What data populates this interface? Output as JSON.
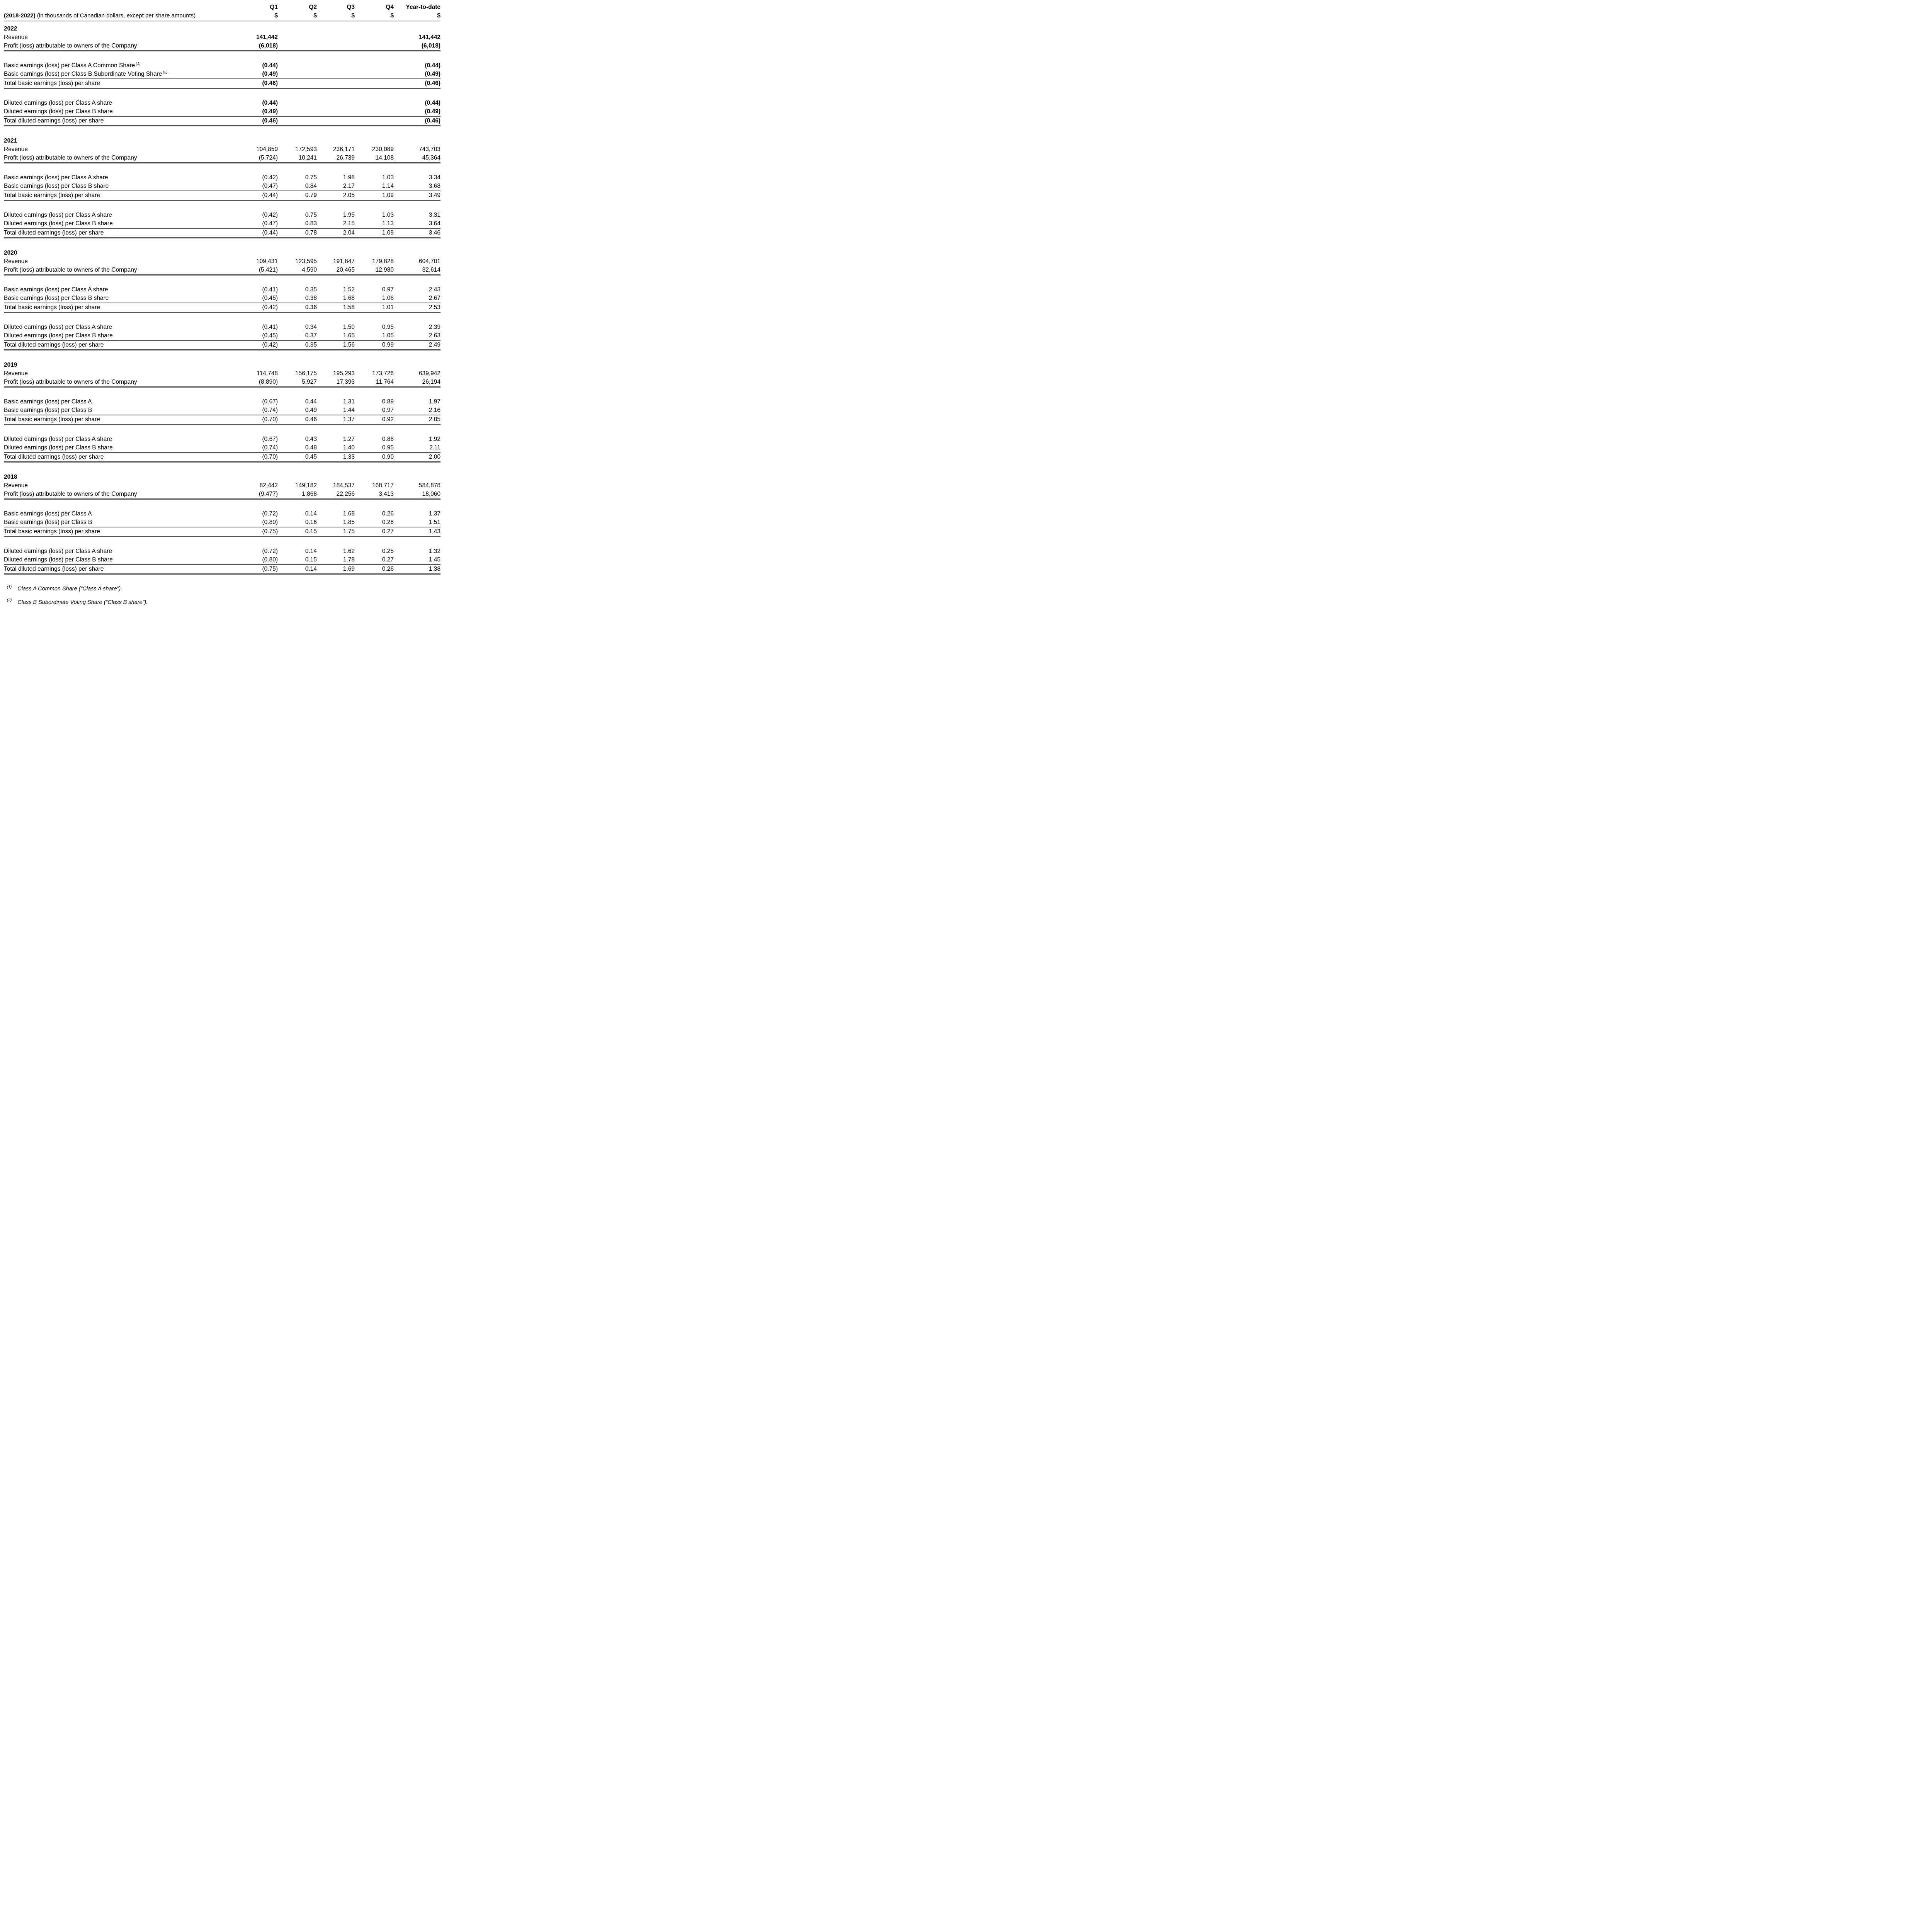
{
  "header": {
    "title_bold": "(2018-2022)",
    "title_note": "(in thousands of Canadian dollars, except per share amounts)",
    "columns": [
      "Q1",
      "Q2",
      "Q3",
      "Q4",
      "Year-to-date"
    ],
    "currency_symbol": "$"
  },
  "colors": {
    "rule_dark": "#54565A",
    "rule_light": "#E4E4E6",
    "text": "#000000"
  },
  "sections": [
    {
      "year": "2022",
      "emphasis": true,
      "rows": [
        {
          "label": "Revenue",
          "values": [
            "141,442",
            "",
            "",
            "",
            "141,442"
          ]
        },
        {
          "label": "Profit (loss) attributable to owners of the Company",
          "values": [
            "(6,018)",
            "",
            "",
            "",
            "(6,018)"
          ],
          "divider_after": "thick"
        },
        {
          "type": "spacer"
        },
        {
          "label": "Basic earnings (loss) per Class A Common Share",
          "sup": "(1)",
          "values": [
            "(0.44)",
            "",
            "",
            "",
            "(0.44)"
          ]
        },
        {
          "label": "Basic earnings (loss) per Class B Subordinate Voting Share",
          "sup": "(2)",
          "values": [
            "(0.49)",
            "",
            "",
            "",
            "(0.49)"
          ],
          "divider_after": "thin"
        },
        {
          "label": "Total basic earnings (loss) per share",
          "values": [
            "(0.46)",
            "",
            "",
            "",
            "(0.46)"
          ],
          "divider_after": "thick"
        },
        {
          "type": "spacer"
        },
        {
          "label": "Diluted earnings (loss) per Class A share",
          "values": [
            "(0.44)",
            "",
            "",
            "",
            "(0.44)"
          ]
        },
        {
          "label": "Diluted earnings (loss) per Class B share",
          "values": [
            "(0.49)",
            "",
            "",
            "",
            "(0.49)"
          ],
          "divider_after": "thin"
        },
        {
          "label": "Total diluted earnings (loss) per share",
          "values": [
            "(0.46)",
            "",
            "",
            "",
            "(0.46)"
          ],
          "divider_after": "thick"
        }
      ]
    },
    {
      "year": "2021",
      "emphasis": false,
      "rows": [
        {
          "label": "Revenue",
          "values": [
            "104,850",
            "172,593",
            "236,171",
            "230,089",
            "743,703"
          ]
        },
        {
          "label": "Profit (loss) attributable to owners of the Company",
          "values": [
            "(5,724)",
            "10,241",
            "26,739",
            "14,108",
            "45,364"
          ],
          "divider_after": "thick"
        },
        {
          "type": "spacer"
        },
        {
          "label": "Basic earnings (loss) per Class A share",
          "values": [
            "(0.42)",
            "0.75",
            "1.98",
            "1.03",
            "3.34"
          ]
        },
        {
          "label": "Basic earnings (loss) per Class B share",
          "values": [
            "(0.47)",
            "0.84",
            "2.17",
            "1.14",
            "3.68"
          ],
          "divider_after": "thin"
        },
        {
          "label": "Total basic earnings (loss) per share",
          "values": [
            "(0.44)",
            "0.79",
            "2.05",
            "1.09",
            "3.49"
          ],
          "divider_after": "thick"
        },
        {
          "type": "spacer"
        },
        {
          "label": "Diluted earnings (loss) per Class A share",
          "values": [
            "(0.42)",
            "0.75",
            "1.95",
            "1.03",
            "3.31"
          ]
        },
        {
          "label": "Diluted earnings (loss) per Class B share",
          "values": [
            "(0.47)",
            "0.83",
            "2.15",
            "1.13",
            "3.64"
          ],
          "divider_after": "thin"
        },
        {
          "label": "Total diluted earnings (loss) per share",
          "values": [
            "(0.44)",
            "0.78",
            "2.04",
            "1.09",
            "3.46"
          ],
          "divider_after": "thick"
        }
      ]
    },
    {
      "year": "2020",
      "emphasis": false,
      "rows": [
        {
          "label": "Revenue",
          "values": [
            "109,431",
            "123,595",
            "191,847",
            "179,828",
            "604,701"
          ]
        },
        {
          "label": "Profit (loss) attributable to owners of the Company",
          "values": [
            "(5,421)",
            "4,590",
            "20,465",
            "12,980",
            "32,614"
          ],
          "divider_after": "thick"
        },
        {
          "type": "spacer"
        },
        {
          "label": "Basic earnings (loss) per Class A share",
          "values": [
            "(0.41)",
            "0.35",
            "1.52",
            "0.97",
            "2.43"
          ]
        },
        {
          "label": "Basic earnings (loss) per Class B share",
          "values": [
            "(0.45)",
            "0.38",
            "1.68",
            "1.06",
            "2.67"
          ],
          "divider_after": "thin"
        },
        {
          "label": "Total basic earnings (loss) per share",
          "values": [
            "(0.42)",
            "0.36",
            "1.58",
            "1.01",
            "2.53"
          ],
          "divider_after": "thick"
        },
        {
          "type": "spacer"
        },
        {
          "label": "Diluted earnings (loss) per Class A share",
          "values": [
            "(0.41)",
            "0.34",
            "1.50",
            "0.95",
            "2.39"
          ]
        },
        {
          "label": "Diluted earnings (loss) per Class B share",
          "values": [
            "(0.45)",
            "0.37",
            "1.65",
            "1.05",
            "2.63"
          ],
          "divider_after": "thin"
        },
        {
          "label": "Total diluted earnings (loss) per share",
          "values": [
            "(0.42)",
            "0.35",
            "1.56",
            "0.99",
            "2.49"
          ],
          "divider_after": "thick"
        }
      ]
    },
    {
      "year": "2019",
      "emphasis": false,
      "rows": [
        {
          "label": "Revenue",
          "values": [
            "114,748",
            "156,175",
            "195,293",
            "173,726",
            "639,942"
          ]
        },
        {
          "label": "Profit (loss) attributable to owners of the Company",
          "values": [
            "(8,890)",
            "5,927",
            "17,393",
            "11,764",
            "26,194"
          ],
          "divider_after": "thick"
        },
        {
          "type": "spacer"
        },
        {
          "label": "Basic earnings (loss) per Class A",
          "values": [
            "(0.67)",
            "0.44",
            "1.31",
            "0.89",
            "1.97"
          ]
        },
        {
          "label": "Basic earnings (loss) per Class B",
          "values": [
            "(0.74)",
            "0.49",
            "1.44",
            "0.97",
            "2.16"
          ],
          "divider_after": "thin"
        },
        {
          "label": "Total basic earnings (loss) per share",
          "values": [
            "(0.70)",
            "0.46",
            "1.37",
            "0.92",
            "2.05"
          ],
          "divider_after": "thick"
        },
        {
          "type": "spacer"
        },
        {
          "label": "Diluted earnings (loss) per Class A share",
          "values": [
            "(0.67)",
            "0.43",
            "1.27",
            "0.86",
            "1.92"
          ]
        },
        {
          "label": "Diluted earnings (loss) per Class B share",
          "values": [
            "(0.74)",
            "0.48",
            "1.40",
            "0.95",
            "2.11"
          ],
          "divider_after": "thin"
        },
        {
          "label": "Total diluted earnings (loss) per share",
          "values": [
            "(0.70)",
            "0.45",
            "1.33",
            "0.90",
            "2.00"
          ],
          "divider_after": "thick"
        }
      ]
    },
    {
      "year": "2018",
      "emphasis": false,
      "rows": [
        {
          "label": "Revenue",
          "values": [
            "82,442",
            "149,182",
            "184,537",
            "168,717",
            "584,878"
          ]
        },
        {
          "label": "Profit (loss) attributable to owners of the Company",
          "values": [
            "(9,477)",
            "1,868",
            "22,256",
            "3,413",
            "18,060"
          ],
          "divider_after": "thick"
        },
        {
          "type": "spacer"
        },
        {
          "label": "Basic earnings (loss) per Class A",
          "values": [
            "(0.72)",
            "0.14",
            "1.68",
            "0.26",
            "1.37"
          ]
        },
        {
          "label": "Basic earnings (loss) per Class B",
          "values": [
            "(0.80)",
            "0.16",
            "1.85",
            "0.28",
            "1.51"
          ],
          "divider_after": "thin"
        },
        {
          "label": "Total basic earnings (loss) per share",
          "values": [
            "(0.75)",
            "0.15",
            "1.75",
            "0.27",
            "1.43"
          ],
          "divider_after": "thick"
        },
        {
          "type": "spacer"
        },
        {
          "label": "Diluted earnings (loss) per Class A share",
          "values": [
            "(0.72)",
            "0.14",
            "1.62",
            "0.25",
            "1.32"
          ]
        },
        {
          "label": "Diluted earnings (loss) per Class B share",
          "values": [
            "(0.80)",
            "0.15",
            "1.78",
            "0.27",
            "1.45"
          ],
          "divider_after": "thin"
        },
        {
          "label": "Total diluted earnings (loss) per share",
          "values": [
            "(0.75)",
            "0.14",
            "1.69",
            "0.26",
            "1.38"
          ],
          "divider_after": "thick"
        }
      ]
    }
  ],
  "footnotes": [
    {
      "mark": "(1)",
      "text": "Class A Common Share (“Class A share”)."
    },
    {
      "mark": "(2)",
      "text": "Class B Subordinate Voting Share (“Class B share”)."
    }
  ]
}
